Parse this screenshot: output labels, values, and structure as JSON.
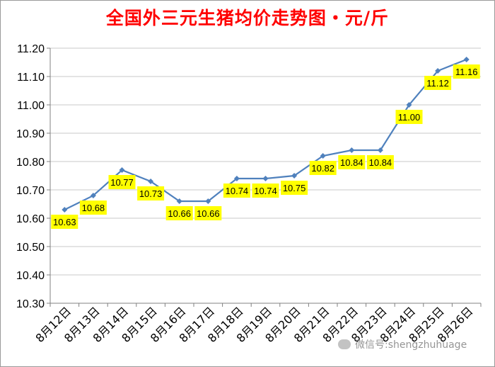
{
  "chart_data": {
    "type": "line",
    "title": "全国外三元生猪均价走势图・元/斤",
    "xlabel": "",
    "ylabel": "",
    "ylim": [
      10.3,
      11.2
    ],
    "ytick_step": 0.1,
    "yticks": [
      "10.30",
      "10.40",
      "10.50",
      "10.60",
      "10.70",
      "10.80",
      "10.90",
      "11.00",
      "11.10",
      "11.20"
    ],
    "categories": [
      "8月12日",
      "8月13日",
      "8月14日",
      "8月15日",
      "8月16日",
      "8月17日",
      "8月18日",
      "8月19日",
      "8月20日",
      "8月21日",
      "8月22日",
      "8月23日",
      "8月24日",
      "8月25日",
      "8月26日"
    ],
    "series": [
      {
        "values": [
          10.63,
          10.68,
          10.77,
          10.73,
          10.66,
          10.66,
          10.74,
          10.74,
          10.75,
          10.82,
          10.84,
          10.84,
          11.0,
          11.12,
          11.16
        ],
        "labels": [
          "10.63",
          "10.68",
          "10.77",
          "10.73",
          "10.66",
          "10.66",
          "10.74",
          "10.74",
          "10.75",
          "10.82",
          "10.84",
          "10.84",
          "11.00",
          "11.12",
          "11.16"
        ],
        "color": "#4f81bd"
      }
    ],
    "label_bg": "#ffff00",
    "grid": true,
    "grid_color": "#c8c8c8"
  },
  "watermark": {
    "text": "微信号:shengzhuhuage",
    "icon": "wechat-icon"
  }
}
